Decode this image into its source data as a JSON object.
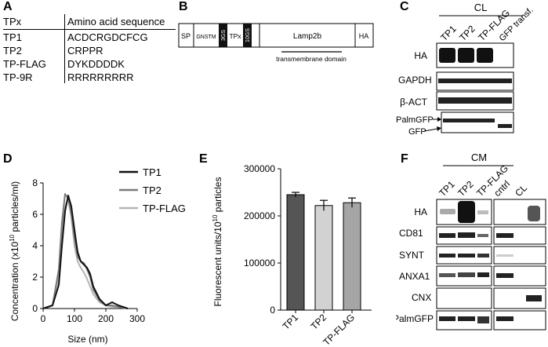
{
  "panelA": {
    "label": "A",
    "header": {
      "col1": "TPx",
      "col2": "Amino acid sequence"
    },
    "rows": [
      {
        "name": "TP1",
        "seq": "ACDCRGDCFCG"
      },
      {
        "name": "TP2",
        "seq": "CRPPR"
      },
      {
        "name": "TP-FLAG",
        "seq": "DYKDDDDK"
      },
      {
        "name": "TP-9R",
        "seq": "RRRRRRRRR"
      }
    ]
  },
  "panelB": {
    "label": "B",
    "segments": {
      "sp": "SP",
      "gnstm": "GNSTM",
      "gs3": "3GS",
      "tpx": "TPx",
      "gs10": "10GS",
      "lamp": "Lamp2b",
      "ha": "HA"
    },
    "tm_label": "transmembrane domain"
  },
  "panelC": {
    "label": "C",
    "group": "CL",
    "lanes": [
      "TP1",
      "TP2",
      "TP-FLAG",
      "GFP transf."
    ],
    "blots": [
      "HA",
      "GAPDH",
      "β-ACT",
      "PalmGFP",
      "GFP"
    ]
  },
  "panelD": {
    "label": "D",
    "chart_data": {
      "type": "line",
      "xlabel": "Size (nm)",
      "ylabel": "Concentration (x10",
      "ylabel_sup": "10",
      "ylabel_tail": " particles/ml)",
      "xlim": [
        0,
        300
      ],
      "ylim": [
        0,
        8
      ],
      "xticks": [
        "0",
        "100",
        "200",
        "300"
      ],
      "yticks": [
        "0",
        "2",
        "4",
        "6",
        "8"
      ],
      "series": [
        {
          "name": "TP1",
          "color": "#111111",
          "x": [
            0,
            30,
            50,
            60,
            70,
            80,
            90,
            100,
            110,
            120,
            130,
            140,
            150,
            160,
            180,
            200,
            220,
            240,
            270
          ],
          "y": [
            0,
            0.2,
            1.5,
            4.0,
            6.2,
            7.2,
            6.5,
            5.0,
            3.6,
            3.0,
            2.8,
            2.6,
            2.2,
            1.4,
            0.6,
            0.2,
            0.4,
            0.2,
            0
          ]
        },
        {
          "name": "TP2",
          "color": "#7a7a7a",
          "x": [
            0,
            30,
            50,
            60,
            70,
            80,
            90,
            100,
            110,
            120,
            130,
            140,
            150,
            160,
            180,
            200,
            220,
            240,
            270
          ],
          "y": [
            0,
            0.2,
            2.5,
            5.5,
            7.3,
            7.0,
            6.0,
            4.5,
            3.3,
            3.0,
            2.9,
            2.5,
            2.0,
            1.2,
            0.5,
            0.2,
            0.2,
            0.1,
            0
          ]
        },
        {
          "name": "TP-FLAG",
          "color": "#b5b5b5",
          "x": [
            0,
            30,
            50,
            60,
            70,
            80,
            90,
            100,
            110,
            120,
            130,
            140,
            150,
            160,
            180,
            200,
            220,
            240,
            270
          ],
          "y": [
            0,
            0.2,
            2.0,
            5.0,
            6.5,
            7.0,
            5.8,
            4.0,
            3.0,
            2.6,
            2.3,
            1.9,
            1.4,
            0.9,
            0.4,
            0.2,
            0.1,
            0.1,
            0
          ]
        }
      ]
    }
  },
  "panelE": {
    "label": "E",
    "chart_data": {
      "type": "bar",
      "categories": [
        "TP1",
        "TP2",
        "TP-FLAG"
      ],
      "values": [
        245000,
        222000,
        228000
      ],
      "errors": [
        5000,
        11000,
        10000
      ],
      "colors": [
        "#555555",
        "#d2d2d2",
        "#a5a5a5"
      ],
      "ylabel": "Fluorescent units/10",
      "ylabel_sup": "10",
      "ylabel_tail": " particles",
      "ylim": [
        0,
        300000
      ],
      "yticks": [
        "0",
        "100000",
        "200000",
        "300000"
      ]
    }
  },
  "panelF": {
    "label": "F",
    "group": "CM",
    "lanes": [
      "TP1",
      "TP2",
      "TP-FLAG",
      "cntrl",
      "CL"
    ],
    "blots": [
      "HA",
      "CD81",
      "SYNT",
      "ANXA1",
      "CNX",
      "PalmGFP"
    ]
  }
}
